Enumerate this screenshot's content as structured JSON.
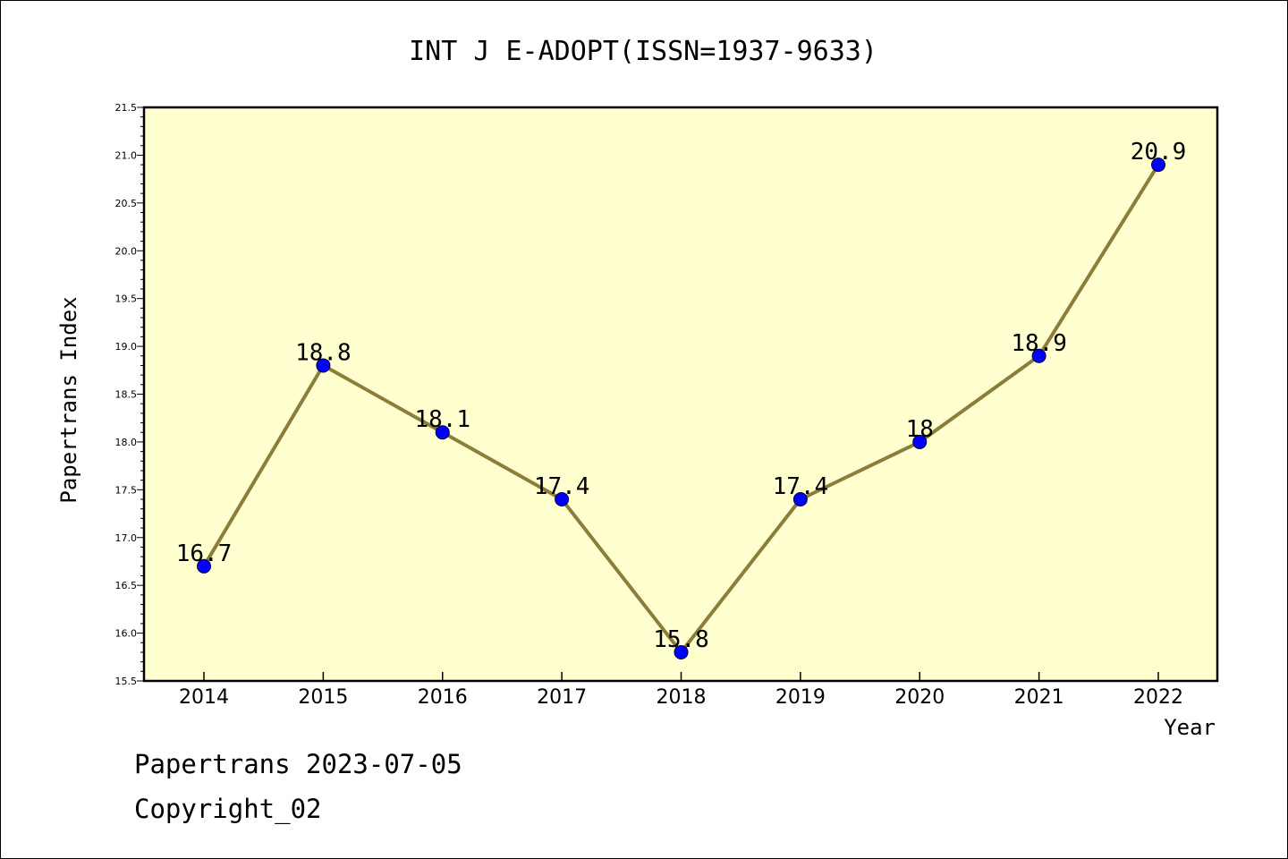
{
  "footer": {
    "line1": "Papertrans 2023-07-05",
    "line2": "Copyright_02"
  },
  "chart_data": {
    "type": "line",
    "title": "INT J E-ADOPT(ISSN=1937-9633)",
    "xlabel": "Year",
    "ylabel": "Papertrans Index",
    "x": [
      "2014",
      "2015",
      "2016",
      "2017",
      "2018",
      "2019",
      "2020",
      "2021",
      "2022"
    ],
    "series": [
      {
        "values": [
          16.7,
          18.8,
          18.1,
          17.4,
          15.8,
          17.4,
          18.0,
          18.9,
          20.9
        ],
        "data_labels": [
          "16.7",
          "18.8",
          "18.1",
          "17.4",
          "15.8",
          "17.4",
          "18",
          "18.9",
          "20.9"
        ]
      }
    ],
    "ylim": [
      15.5,
      21.5
    ],
    "yticks": [
      "15.5",
      "16.0",
      "16.5",
      "17.0",
      "17.5",
      "18.0",
      "18.5",
      "19.0",
      "19.5",
      "20.0",
      "20.5",
      "21.0",
      "21.5"
    ],
    "grid": false,
    "colors": {
      "plot_background": "#ffffd0",
      "line": "#8b7d3a",
      "marker": "#0000ff"
    }
  }
}
